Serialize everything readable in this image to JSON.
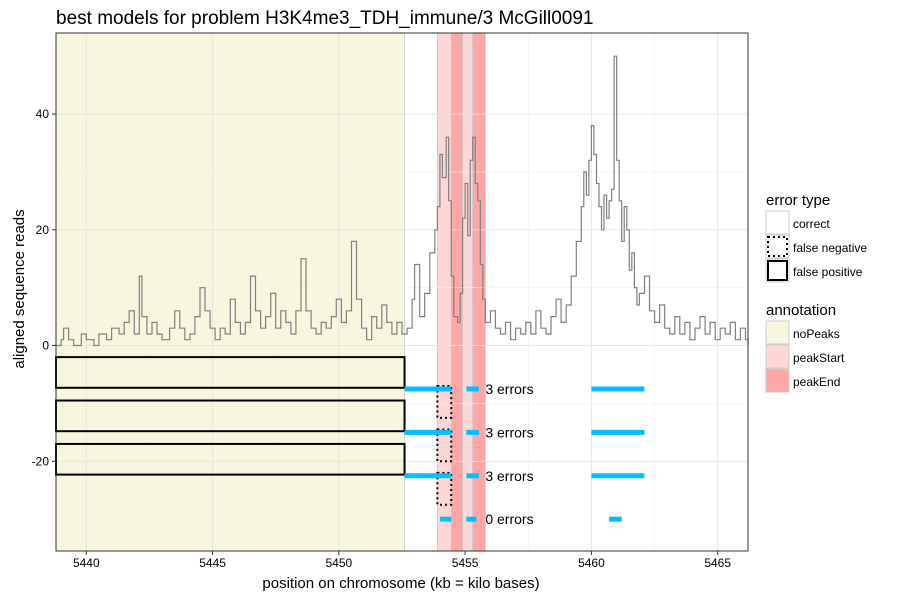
{
  "chart_data": {
    "type": "line",
    "title": "best models for problem H3K4me3_TDH_immune/3 McGill0091",
    "xlabel": "position on chromosome (kb = kilo bases)",
    "ylabel": "aligned sequence reads",
    "xlim": [
      5438.8,
      5466.2
    ],
    "ylim": [
      -35.5,
      54
    ],
    "x_ticks": [
      5440,
      5445,
      5450,
      5455,
      5460,
      5465
    ],
    "y_ticks": [
      40,
      20,
      0,
      -20
    ],
    "grid": true,
    "annotations": [
      {
        "type": "noPeaks",
        "start": 5438.8,
        "end": 5452.6
      },
      {
        "type": "peakStart",
        "start": 5453.9,
        "end": 5454.45
      },
      {
        "type": "peakEnd",
        "start": 5454.45,
        "end": 5454.9
      },
      {
        "type": "peakStart",
        "start": 5454.9,
        "end": 5455.3
      },
      {
        "type": "peakEnd",
        "start": 5455.3,
        "end": 5455.8
      }
    ],
    "coverage": [
      [
        5438.8,
        0
      ],
      [
        5439.0,
        1
      ],
      [
        5439.1,
        3
      ],
      [
        5439.3,
        1
      ],
      [
        5439.5,
        0
      ],
      [
        5439.8,
        2
      ],
      [
        5440.0,
        1
      ],
      [
        5440.3,
        0
      ],
      [
        5440.5,
        2
      ],
      [
        5440.8,
        1
      ],
      [
        5441.0,
        3
      ],
      [
        5441.3,
        2
      ],
      [
        5441.5,
        4
      ],
      [
        5441.7,
        6
      ],
      [
        5441.9,
        2
      ],
      [
        5442.1,
        12
      ],
      [
        5442.2,
        5
      ],
      [
        5442.4,
        2
      ],
      [
        5442.6,
        4
      ],
      [
        5442.8,
        2
      ],
      [
        5443.0,
        1
      ],
      [
        5443.3,
        3
      ],
      [
        5443.5,
        6
      ],
      [
        5443.7,
        3
      ],
      [
        5443.9,
        1
      ],
      [
        5444.1,
        2
      ],
      [
        5444.3,
        5
      ],
      [
        5444.5,
        10
      ],
      [
        5444.7,
        6
      ],
      [
        5444.9,
        3
      ],
      [
        5445.1,
        1
      ],
      [
        5445.3,
        3
      ],
      [
        5445.5,
        2
      ],
      [
        5445.7,
        8
      ],
      [
        5445.9,
        4
      ],
      [
        5446.1,
        2
      ],
      [
        5446.3,
        4
      ],
      [
        5446.5,
        12
      ],
      [
        5446.7,
        6
      ],
      [
        5446.9,
        3
      ],
      [
        5447.1,
        5
      ],
      [
        5447.3,
        9
      ],
      [
        5447.5,
        3
      ],
      [
        5447.7,
        6
      ],
      [
        5447.9,
        4
      ],
      [
        5448.1,
        2
      ],
      [
        5448.3,
        6
      ],
      [
        5448.5,
        15
      ],
      [
        5448.7,
        6
      ],
      [
        5448.9,
        3
      ],
      [
        5449.1,
        2
      ],
      [
        5449.3,
        4
      ],
      [
        5449.5,
        3
      ],
      [
        5449.7,
        5
      ],
      [
        5449.9,
        8
      ],
      [
        5450.1,
        4
      ],
      [
        5450.3,
        6
      ],
      [
        5450.5,
        18
      ],
      [
        5450.7,
        8
      ],
      [
        5450.9,
        3
      ],
      [
        5451.1,
        1
      ],
      [
        5451.3,
        5
      ],
      [
        5451.5,
        3
      ],
      [
        5451.7,
        7
      ],
      [
        5451.9,
        4
      ],
      [
        5452.1,
        2
      ],
      [
        5452.3,
        4
      ],
      [
        5452.5,
        2
      ],
      [
        5452.7,
        3
      ],
      [
        5452.9,
        8
      ],
      [
        5453.0,
        14
      ],
      [
        5453.2,
        5
      ],
      [
        5453.4,
        9
      ],
      [
        5453.6,
        16
      ],
      [
        5453.8,
        20
      ],
      [
        5453.9,
        24
      ],
      [
        5454.0,
        33
      ],
      [
        5454.1,
        29
      ],
      [
        5454.25,
        36
      ],
      [
        5454.35,
        25
      ],
      [
        5454.45,
        12
      ],
      [
        5454.55,
        5
      ],
      [
        5454.7,
        4
      ],
      [
        5454.8,
        9
      ],
      [
        5454.9,
        22
      ],
      [
        5455.0,
        28
      ],
      [
        5455.1,
        19
      ],
      [
        5455.2,
        32
      ],
      [
        5455.3,
        36
      ],
      [
        5455.4,
        28
      ],
      [
        5455.5,
        25
      ],
      [
        5455.6,
        14
      ],
      [
        5455.7,
        8
      ],
      [
        5455.8,
        4
      ],
      [
        5456.0,
        6
      ],
      [
        5456.2,
        3
      ],
      [
        5456.4,
        2
      ],
      [
        5456.6,
        4
      ],
      [
        5456.8,
        1
      ],
      [
        5457.0,
        3
      ],
      [
        5457.2,
        2
      ],
      [
        5457.4,
        4
      ],
      [
        5457.6,
        2
      ],
      [
        5457.8,
        6
      ],
      [
        5458.0,
        3
      ],
      [
        5458.2,
        2
      ],
      [
        5458.4,
        5
      ],
      [
        5458.6,
        8
      ],
      [
        5458.8,
        4
      ],
      [
        5459.0,
        7
      ],
      [
        5459.2,
        12
      ],
      [
        5459.4,
        18
      ],
      [
        5459.6,
        24
      ],
      [
        5459.7,
        30
      ],
      [
        5459.8,
        26
      ],
      [
        5459.9,
        32
      ],
      [
        5460.0,
        38
      ],
      [
        5460.1,
        33
      ],
      [
        5460.2,
        28
      ],
      [
        5460.3,
        24
      ],
      [
        5460.4,
        20
      ],
      [
        5460.5,
        26
      ],
      [
        5460.6,
        22
      ],
      [
        5460.7,
        25
      ],
      [
        5460.8,
        27
      ],
      [
        5460.9,
        50
      ],
      [
        5461.0,
        32
      ],
      [
        5461.1,
        25
      ],
      [
        5461.2,
        18
      ],
      [
        5461.3,
        24
      ],
      [
        5461.4,
        20
      ],
      [
        5461.5,
        13
      ],
      [
        5461.6,
        16
      ],
      [
        5461.7,
        10
      ],
      [
        5461.8,
        7
      ],
      [
        5461.9,
        9
      ],
      [
        5462.1,
        12
      ],
      [
        5462.3,
        6
      ],
      [
        5462.5,
        4
      ],
      [
        5462.7,
        7
      ],
      [
        5462.9,
        3
      ],
      [
        5463.1,
        2
      ],
      [
        5463.3,
        5
      ],
      [
        5463.5,
        2
      ],
      [
        5463.7,
        4
      ],
      [
        5463.9,
        1
      ],
      [
        5464.1,
        3
      ],
      [
        5464.3,
        5
      ],
      [
        5464.5,
        2
      ],
      [
        5464.7,
        4
      ],
      [
        5464.9,
        1
      ],
      [
        5465.1,
        3
      ],
      [
        5465.3,
        2
      ],
      [
        5465.5,
        4
      ],
      [
        5465.7,
        1
      ],
      [
        5465.9,
        3
      ],
      [
        5466.1,
        1
      ],
      [
        5466.2,
        0
      ]
    ],
    "models": [
      {
        "label": "3 errors",
        "y": -7.5,
        "segments": [
          [
            5452.6,
            5454.45
          ],
          [
            5455.05,
            5455.55
          ],
          [
            5460.0,
            5462.1
          ]
        ],
        "label_x": 5455.8,
        "false_positive": [
          5438.8,
          5452.6
        ],
        "false_negative": [
          5453.9,
          5454.45
        ]
      },
      {
        "label": "3 errors",
        "y": -15.0,
        "segments": [
          [
            5452.6,
            5454.45
          ],
          [
            5455.05,
            5455.55
          ],
          [
            5460.0,
            5462.1
          ]
        ],
        "label_x": 5455.8,
        "false_positive": [
          5438.8,
          5452.6
        ],
        "false_negative": [
          5453.9,
          5454.45
        ]
      },
      {
        "label": "3 errors",
        "y": -22.5,
        "segments": [
          [
            5452.6,
            5454.45
          ],
          [
            5455.05,
            5455.55
          ],
          [
            5460.0,
            5462.1
          ]
        ],
        "label_x": 5455.8,
        "false_positive": [
          5438.8,
          5452.6
        ],
        "false_negative": [
          5453.9,
          5454.45
        ]
      },
      {
        "label": "0 errors",
        "y": -30.0,
        "segments": [
          [
            5454.0,
            5454.45
          ],
          [
            5455.05,
            5455.45
          ],
          [
            5460.7,
            5461.2
          ]
        ],
        "label_x": 5455.8,
        "false_positive": null,
        "false_negative": null
      }
    ],
    "legend": {
      "placement": "right",
      "error_title": "error type",
      "error_items": [
        "correct",
        "false negative",
        "false positive"
      ],
      "annotation_title": "annotation",
      "annotation_items": [
        "noPeaks",
        "peakStart",
        "peakEnd"
      ]
    },
    "colors": {
      "noPeaks": "#f8f6dc",
      "peakStart": "#ffd6d6",
      "peakEnd": "#ffa6a6",
      "coverage": "#808080",
      "segment": "#00bfff"
    }
  }
}
